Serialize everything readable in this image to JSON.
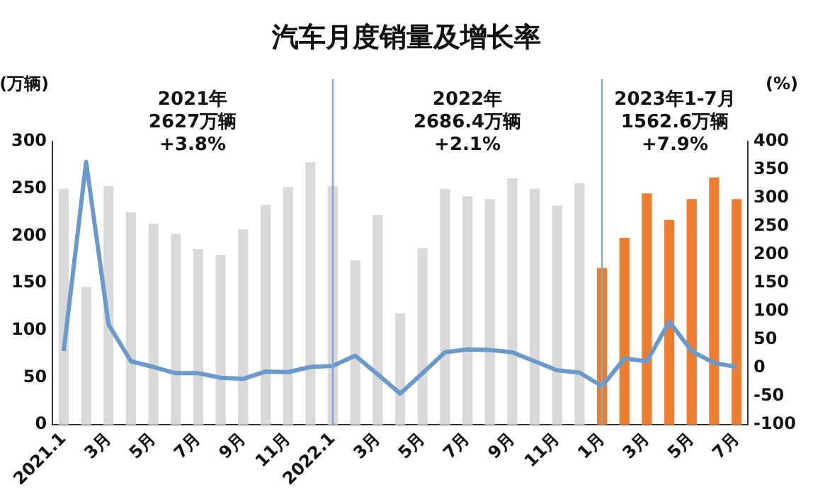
{
  "chart_data": {
    "type": "bar",
    "title": "汽车月度销量及增长率",
    "ylabel": "(万辆)",
    "y2label": "(%)",
    "annotations": [
      "2021年\n2627万辆\n+3.8%",
      "2022年\n2686.4万辆\n+2.1%",
      "2023年1-7月\n1562.6万辆\n+7.9%"
    ],
    "categories": [
      "2021.1",
      null,
      "3月",
      null,
      "5月",
      null,
      "7月",
      null,
      "9月",
      null,
      "11月",
      null,
      "2022.1",
      null,
      "3月",
      null,
      "5月",
      null,
      "7月",
      null,
      "9月",
      null,
      "11月",
      null,
      "1月",
      null,
      "3月",
      null,
      "5月",
      null,
      "7月"
    ],
    "series": [
      {
        "colors": [
          "#d9d9d9",
          "#d9d9d9",
          "#d9d9d9",
          "#d9d9d9",
          "#d9d9d9",
          "#d9d9d9",
          "#d9d9d9",
          "#d9d9d9",
          "#d9d9d9",
          "#d9d9d9",
          "#d9d9d9",
          "#d9d9d9",
          "#d9d9d9",
          "#d9d9d9",
          "#d9d9d9",
          "#d9d9d9",
          "#d9d9d9",
          "#d9d9d9",
          "#d9d9d9",
          "#d9d9d9",
          "#d9d9d9",
          "#d9d9d9",
          "#d9d9d9",
          "#d9d9d9",
          "#ed7d31",
          "#ed7d31",
          "#ed7d31",
          "#ed7d31",
          "#ed7d31",
          "#ed7d31",
          "#ed7d31"
        ],
        "values": [
          250,
          146,
          253,
          225,
          213,
          202,
          186,
          180,
          207,
          233,
          252,
          278,
          253,
          174,
          222,
          118,
          187,
          250,
          242,
          239,
          261,
          250,
          232,
          256,
          166,
          198,
          245,
          217,
          239,
          262,
          239
        ]
      },
      {
        "type": "line",
        "axis": "y2",
        "color": "#6a9acb",
        "values": [
          30,
          364,
          77,
          12,
          2,
          -9,
          -9,
          -17,
          -19,
          -6,
          -7,
          2,
          4,
          22,
          -11,
          -45,
          -9,
          28,
          33,
          32,
          28,
          12,
          -4,
          -8,
          -32,
          17,
          12,
          82,
          30,
          9,
          2
        ]
      }
    ],
    "ylim": [
      0,
      300
    ],
    "yticks": [
      0,
      50,
      100,
      150,
      200,
      250,
      300
    ],
    "y2lim": [
      -100,
      400
    ],
    "y2ticks": [
      -100,
      -50,
      0,
      50,
      100,
      150,
      200,
      250,
      300,
      350,
      400
    ],
    "ref_lines": [
      {
        "axis": "x",
        "value": "2022.1",
        "color": "#7fa7cf"
      },
      {
        "axis": "x",
        "value": "1月",
        "color": "#7fa7cf"
      }
    ],
    "grid": false,
    "legend": false,
    "marker": "none"
  }
}
